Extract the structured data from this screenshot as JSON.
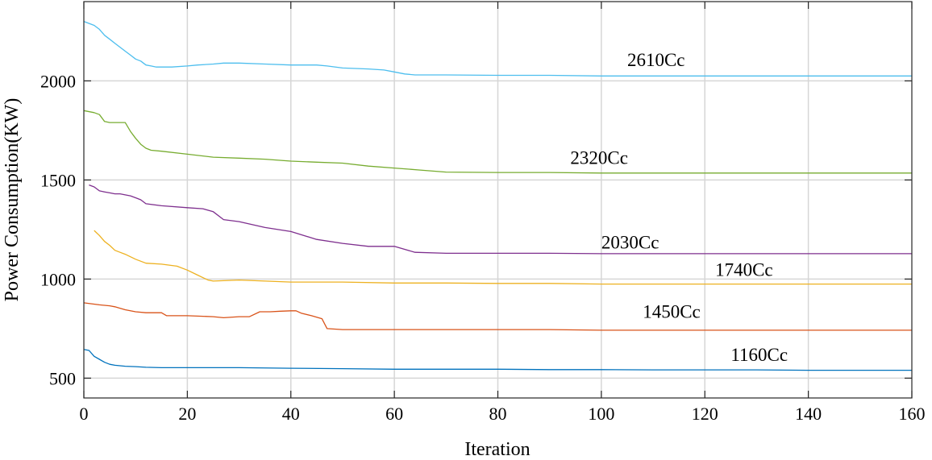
{
  "chart_data": {
    "type": "line",
    "title": "",
    "xlabel": "Iteration",
    "ylabel": "Power Consumption(KW)",
    "xlim": [
      0,
      160
    ],
    "ylim": [
      400,
      2400
    ],
    "xticks": [
      0,
      20,
      40,
      60,
      80,
      100,
      120,
      140,
      160
    ],
    "yticks": [
      500,
      1000,
      1500,
      2000
    ],
    "grid": true,
    "series": [
      {
        "name": "2610Cc",
        "color": "#4DBEEE",
        "label_at": [
          105,
          2075
        ],
        "x": [
          0,
          2,
          3,
          4,
          5,
          6,
          7,
          8,
          9,
          10,
          11,
          12,
          13,
          14,
          15,
          16,
          17,
          20,
          22,
          25,
          27,
          30,
          35,
          40,
          45,
          47,
          50,
          55,
          58,
          60,
          62,
          64,
          70,
          80,
          90,
          100,
          110,
          120,
          130,
          140,
          150,
          160
        ],
        "y": [
          2300,
          2280,
          2260,
          2230,
          2210,
          2190,
          2170,
          2150,
          2130,
          2110,
          2100,
          2080,
          2075,
          2070,
          2070,
          2070,
          2070,
          2075,
          2080,
          2085,
          2090,
          2090,
          2085,
          2080,
          2080,
          2075,
          2065,
          2060,
          2055,
          2045,
          2035,
          2030,
          2030,
          2028,
          2028,
          2025,
          2025,
          2025,
          2025,
          2025,
          2025,
          2025
        ]
      },
      {
        "name": "2320Cc",
        "color": "#77AC30",
        "label_at": [
          94,
          1580
        ],
        "x": [
          0,
          2,
          3,
          4,
          5,
          6,
          7,
          8,
          9,
          10,
          11,
          12,
          13,
          15,
          20,
          25,
          30,
          35,
          40,
          45,
          50,
          55,
          60,
          65,
          70,
          80,
          90,
          100,
          110,
          120,
          130,
          140,
          150,
          160
        ],
        "y": [
          1850,
          1840,
          1830,
          1795,
          1790,
          1790,
          1790,
          1790,
          1745,
          1710,
          1680,
          1660,
          1650,
          1645,
          1630,
          1615,
          1610,
          1605,
          1595,
          1590,
          1585,
          1570,
          1560,
          1550,
          1540,
          1538,
          1538,
          1535,
          1535,
          1535,
          1535,
          1535,
          1535,
          1535
        ]
      },
      {
        "name": "2030Cc",
        "color": "#7E2F8E",
        "label_at": [
          100,
          1155
        ],
        "x": [
          1,
          2,
          3,
          4,
          5,
          6,
          7,
          8,
          9,
          10,
          11,
          12,
          15,
          20,
          23,
          25,
          27,
          30,
          35,
          40,
          45,
          50,
          55,
          60,
          64,
          70,
          80,
          90,
          100,
          110,
          120,
          130,
          140,
          150,
          160
        ],
        "y": [
          1475,
          1465,
          1445,
          1440,
          1435,
          1430,
          1430,
          1425,
          1420,
          1410,
          1400,
          1380,
          1370,
          1360,
          1355,
          1340,
          1300,
          1290,
          1260,
          1240,
          1200,
          1180,
          1165,
          1165,
          1135,
          1130,
          1130,
          1130,
          1128,
          1128,
          1128,
          1128,
          1128,
          1128,
          1128
        ]
      },
      {
        "name": "1740Cc",
        "color": "#EDB120",
        "label_at": [
          122,
          1015
        ],
        "x": [
          2,
          3,
          4,
          5,
          6,
          7,
          8,
          10,
          12,
          15,
          18,
          20,
          22,
          24,
          25,
          30,
          40,
          50,
          60,
          70,
          80,
          90,
          100,
          110,
          120,
          130,
          140,
          150,
          160
        ],
        "y": [
          1245,
          1220,
          1190,
          1170,
          1145,
          1135,
          1125,
          1100,
          1080,
          1075,
          1065,
          1045,
          1020,
          995,
          990,
          995,
          985,
          985,
          980,
          980,
          978,
          978,
          975,
          975,
          975,
          975,
          975,
          975,
          975
        ]
      },
      {
        "name": "1450Cc",
        "color": "#D95319",
        "label_at": [
          108,
          805
        ],
        "x": [
          0,
          3,
          5,
          6,
          8,
          10,
          12,
          15,
          16,
          18,
          20,
          25,
          27,
          30,
          32,
          34,
          36,
          38,
          40,
          41,
          42,
          44,
          46,
          47,
          50,
          60,
          70,
          80,
          90,
          100,
          110,
          120,
          130,
          140,
          150,
          160
        ],
        "y": [
          880,
          870,
          865,
          860,
          845,
          835,
          830,
          830,
          815,
          815,
          815,
          810,
          805,
          810,
          810,
          835,
          835,
          838,
          840,
          840,
          828,
          815,
          800,
          750,
          745,
          745,
          745,
          745,
          745,
          742,
          742,
          742,
          742,
          742,
          742,
          742
        ]
      },
      {
        "name": "1160Cc",
        "color": "#0072BD",
        "label_at": [
          125,
          587
        ],
        "x": [
          0,
          1,
          2,
          3,
          4,
          5,
          6,
          8,
          10,
          12,
          15,
          20,
          25,
          30,
          40,
          50,
          60,
          70,
          80,
          90,
          100,
          110,
          120,
          130,
          140,
          150,
          160
        ],
        "y": [
          645,
          640,
          610,
          595,
          580,
          570,
          565,
          560,
          558,
          555,
          553,
          553,
          553,
          553,
          550,
          548,
          545,
          545,
          545,
          543,
          543,
          542,
          542,
          542,
          540,
          540,
          540
        ]
      }
    ]
  }
}
